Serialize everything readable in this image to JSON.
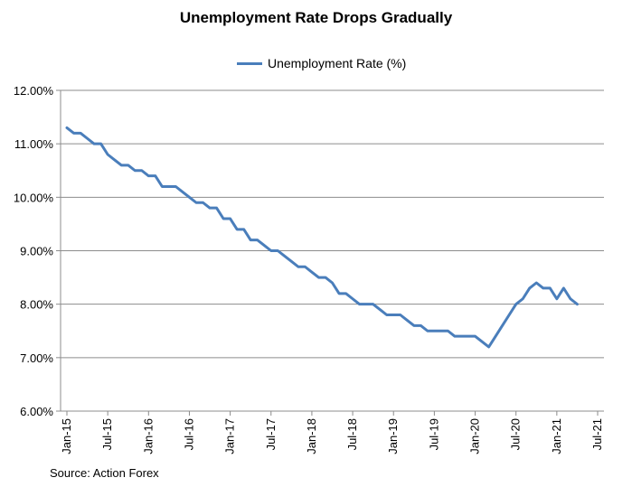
{
  "chart_data": {
    "type": "line",
    "title": "Unemployment Rate Drops Gradually",
    "source": "Source: Action Forex",
    "xlabel": "",
    "ylabel": "",
    "ylim": [
      6.0,
      12.0
    ],
    "y_ticks": [
      "6.00%",
      "7.00%",
      "8.00%",
      "9.00%",
      "10.00%",
      "11.00%",
      "12.00%"
    ],
    "x_ticks": [
      "Jan-15",
      "Jul-15",
      "Jan-16",
      "Jul-16",
      "Jan-17",
      "Jul-17",
      "Jan-18",
      "Jul-18",
      "Jan-19",
      "Jul-19",
      "Jan-20",
      "Jul-20",
      "Jan-21",
      "Jul-21"
    ],
    "grid": true,
    "legend_position": "top-center",
    "series": [
      {
        "name": "Unemployment Rate (%)",
        "color": "#4a7ebb",
        "start": "Jan-15",
        "values": [
          11.3,
          11.2,
          11.2,
          11.1,
          11.0,
          11.0,
          10.8,
          10.7,
          10.6,
          10.6,
          10.5,
          10.5,
          10.4,
          10.4,
          10.2,
          10.2,
          10.2,
          10.1,
          10.0,
          9.9,
          9.9,
          9.8,
          9.8,
          9.6,
          9.6,
          9.4,
          9.4,
          9.2,
          9.2,
          9.1,
          9.0,
          9.0,
          8.9,
          8.8,
          8.7,
          8.7,
          8.6,
          8.5,
          8.5,
          8.4,
          8.2,
          8.2,
          8.1,
          8.0,
          8.0,
          8.0,
          7.9,
          7.8,
          7.8,
          7.8,
          7.7,
          7.6,
          7.6,
          7.5,
          7.5,
          7.5,
          7.5,
          7.4,
          7.4,
          7.4,
          7.4,
          7.3,
          7.2,
          7.4,
          7.6,
          7.8,
          8.0,
          8.1,
          8.3,
          8.4,
          8.3,
          8.3,
          8.1,
          8.3,
          8.1,
          8.0
        ]
      }
    ]
  }
}
